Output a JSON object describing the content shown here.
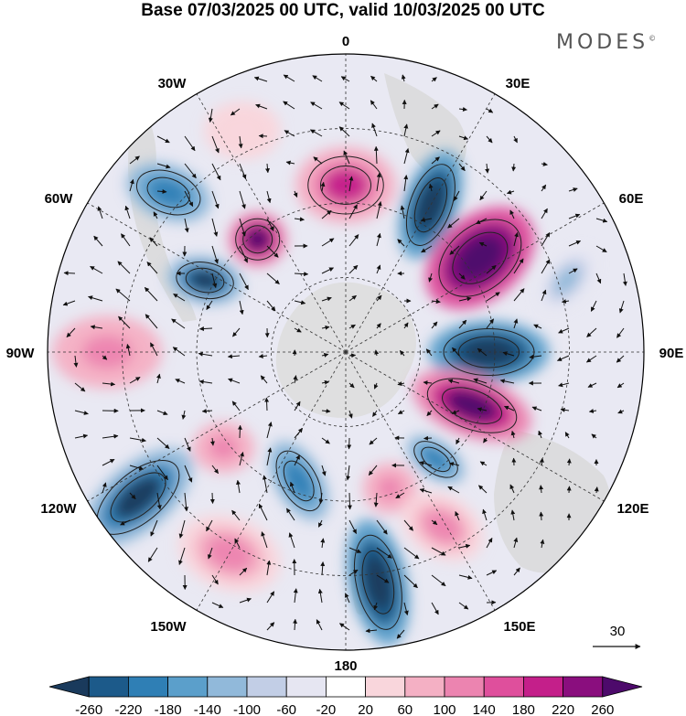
{
  "title": "Base 07/03/2025 00 UTC, valid 10/03/2025 00 UTC",
  "brand": "MODES",
  "brand_mark": "©",
  "longitude_labels": {
    "top": "0",
    "top_right": "30E",
    "right_upper": "60E",
    "right": "90E",
    "right_lower": "120E",
    "bottom_right": "150E",
    "bottom": "180",
    "bottom_left": "150W",
    "left_lower": "120W",
    "left": "90W",
    "left_upper": "60W",
    "top_left": "30W"
  },
  "vector_scale": {
    "label": "30",
    "icon": "arrow-right-icon"
  },
  "colorbar": {
    "labels": [
      "-260",
      "-220",
      "-180",
      "-140",
      "-100",
      "-60",
      "-20",
      "20",
      "60",
      "100",
      "140",
      "180",
      "220",
      "260"
    ],
    "colors": [
      "#1a3a5c",
      "#1c5a8a",
      "#2f7fb5",
      "#5b9fcb",
      "#91b9da",
      "#c2cee6",
      "#e6e6f2",
      "#ffffff",
      "#f9d6dc",
      "#f4b0c4",
      "#ec84b0",
      "#df4f9c",
      "#c41f8a",
      "#8a0e7e",
      "#4d0a6b"
    ]
  },
  "anomalies": [
    {
      "lon": 0,
      "r": 0.56,
      "value": 140,
      "a": 55,
      "b": 42,
      "rot": 0
    },
    {
      "lon": 30,
      "r": 0.57,
      "value": -220,
      "a": 62,
      "b": 30,
      "rot": -70
    },
    {
      "lon": 55,
      "r": 0.55,
      "value": 240,
      "a": 68,
      "b": 46,
      "rot": -40
    },
    {
      "lon": 72,
      "r": 0.78,
      "value": -80,
      "a": 40,
      "b": 22,
      "rot": -50
    },
    {
      "lon": 90,
      "r": 0.48,
      "value": -220,
      "a": 66,
      "b": 34,
      "rot": 0
    },
    {
      "lon": 113,
      "r": 0.46,
      "value": 200,
      "a": 68,
      "b": 34,
      "rot": 20
    },
    {
      "lon": 140,
      "r": 0.47,
      "value": -160,
      "a": 36,
      "b": 20,
      "rot": 35
    },
    {
      "lon": 162,
      "r": 0.48,
      "value": 100,
      "a": 30,
      "b": 28,
      "rot": 0
    },
    {
      "lon": 172,
      "r": 0.78,
      "value": -220,
      "a": 70,
      "b": 32,
      "rot": 78
    },
    {
      "lon": 151,
      "r": 0.67,
      "value": 80,
      "a": 48,
      "b": 34,
      "rot": 30
    },
    {
      "lon": 200,
      "r": 0.46,
      "value": -160,
      "a": 48,
      "b": 26,
      "rot": 60
    },
    {
      "lon": 235,
      "r": 0.85,
      "value": -200,
      "a": 72,
      "b": 36,
      "rot": -40
    },
    {
      "lon": 232,
      "r": 0.52,
      "value": 100,
      "a": 34,
      "b": 28,
      "rot": 0
    },
    {
      "lon": 210,
      "r": 0.78,
      "value": 80,
      "a": 58,
      "b": 40,
      "rot": 20
    },
    {
      "lon": 270,
      "r": 0.8,
      "value": 100,
      "a": 60,
      "b": 40,
      "rot": 0
    },
    {
      "lon": 297,
      "r": 0.53,
      "value": -200,
      "a": 42,
      "b": 26,
      "rot": 10
    },
    {
      "lon": 322,
      "r": 0.48,
      "value": 200,
      "a": 32,
      "b": 30,
      "rot": 0
    },
    {
      "lon": 312,
      "r": 0.8,
      "value": -160,
      "a": 48,
      "b": 30,
      "rot": 20
    },
    {
      "lon": 335,
      "r": 0.82,
      "value": 40,
      "a": 42,
      "b": 32,
      "rot": 0
    }
  ]
}
